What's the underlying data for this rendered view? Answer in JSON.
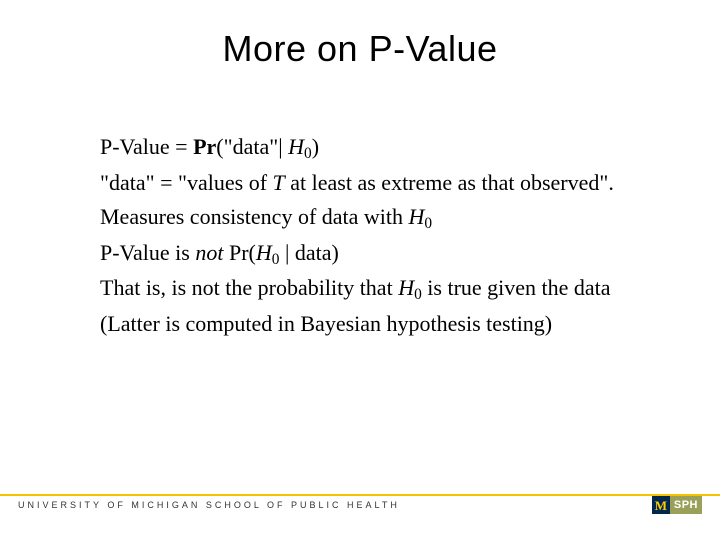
{
  "title": "More on P-Value",
  "lines": {
    "l1_pre": "P-Value =  ",
    "l1_bold": "Pr",
    "l1_post1": "(\"data\"| ",
    "l1_H": "H",
    "l1_sub": "0",
    "l1_post2": ")",
    "l2_pre": "\"data\" = \"values of ",
    "l2_T": "T",
    "l2_post": "  at least as extreme as that observed\".",
    "l3_pre": "Measures consistency of data with ",
    "l3_H": "H",
    "l3_sub": "0",
    "l4_pre": "P-Value is ",
    "l4_not": "not",
    "l4_mid": " Pr(",
    "l4_H": "H",
    "l4_sub": "0",
    "l4_post": " | data)",
    "l5_pre": "That is, is not the probability that ",
    "l5_H": "H",
    "l5_sub": "0",
    "l5_post": "  is true given the data",
    "l6": "(Latter is computed in Bayesian hypothesis testing)"
  },
  "footer": {
    "left": "UNIVERSITY OF MICHIGAN    SCHOOL OF PUBLIC HEALTH",
    "logo_m": "M",
    "logo_sph": "SPH"
  },
  "colors": {
    "rule": "#f5c400",
    "m_bg": "#00274c",
    "m_fg": "#ffcb05",
    "sph_bg": "#9aa05a",
    "sph_fg": "#ffffff"
  }
}
